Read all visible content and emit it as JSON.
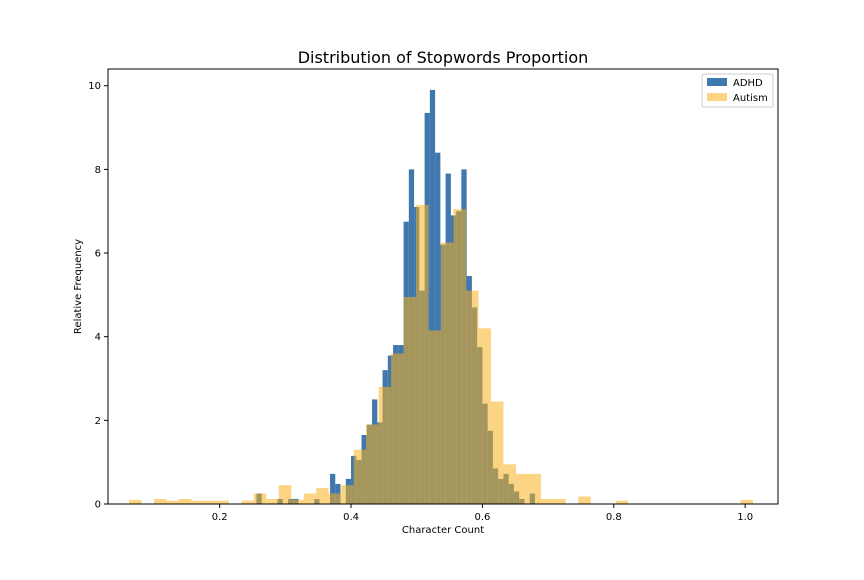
{
  "chart_data": {
    "type": "bar",
    "title": "Distribution of Stopwords Proportion",
    "xlabel": "Character Count",
    "ylabel": "Relative Frequency",
    "xlim": [
      0.03,
      1.05
    ],
    "ylim": [
      0,
      10.4
    ],
    "xticks": [
      0.2,
      0.4,
      0.6,
      0.8,
      1.0
    ],
    "xtick_labels": [
      "0.2",
      "0.4",
      "0.6",
      "0.8",
      "1.0"
    ],
    "yticks": [
      0,
      2,
      4,
      6,
      8,
      10
    ],
    "ytick_labels": [
      "0",
      "2",
      "4",
      "6",
      "8",
      "10"
    ],
    "legend_position": "top-right",
    "grid": false,
    "series": [
      {
        "name": "ADHD",
        "color": "#1f5f9e",
        "opacity": 0.85,
        "bins": [
          [
            0.256,
            0.264,
            0.25
          ],
          [
            0.288,
            0.296,
            0.12
          ],
          [
            0.304,
            0.312,
            0.12
          ],
          [
            0.312,
            0.32,
            0.12
          ],
          [
            0.344,
            0.352,
            0.12
          ],
          [
            0.368,
            0.376,
            0.72
          ],
          [
            0.376,
            0.384,
            0.48
          ],
          [
            0.392,
            0.4,
            0.6
          ],
          [
            0.4,
            0.408,
            1.15
          ],
          [
            0.408,
            0.416,
            1.05
          ],
          [
            0.416,
            0.424,
            1.65
          ],
          [
            0.424,
            0.432,
            1.9
          ],
          [
            0.432,
            0.44,
            2.5
          ],
          [
            0.44,
            0.448,
            1.95
          ],
          [
            0.448,
            0.456,
            3.2
          ],
          [
            0.456,
            0.464,
            3.55
          ],
          [
            0.464,
            0.472,
            3.8
          ],
          [
            0.472,
            0.48,
            3.8
          ],
          [
            0.48,
            0.488,
            6.75
          ],
          [
            0.488,
            0.496,
            8.0
          ],
          [
            0.496,
            0.504,
            7.1
          ],
          [
            0.504,
            0.512,
            5.1
          ],
          [
            0.512,
            0.52,
            9.35
          ],
          [
            0.52,
            0.528,
            9.9
          ],
          [
            0.528,
            0.536,
            8.4
          ],
          [
            0.536,
            0.544,
            6.2
          ],
          [
            0.544,
            0.552,
            7.9
          ],
          [
            0.552,
            0.56,
            6.9
          ],
          [
            0.56,
            0.568,
            7.0
          ],
          [
            0.568,
            0.576,
            8.0
          ],
          [
            0.576,
            0.584,
            5.45
          ],
          [
            0.584,
            0.592,
            4.7
          ],
          [
            0.592,
            0.6,
            3.75
          ],
          [
            0.6,
            0.608,
            2.4
          ],
          [
            0.608,
            0.616,
            1.75
          ],
          [
            0.616,
            0.624,
            0.85
          ],
          [
            0.624,
            0.632,
            0.6
          ],
          [
            0.632,
            0.64,
            0.72
          ],
          [
            0.64,
            0.648,
            0.48
          ],
          [
            0.648,
            0.656,
            0.3
          ],
          [
            0.656,
            0.664,
            0.12
          ],
          [
            0.672,
            0.68,
            0.25
          ]
        ]
      },
      {
        "name": "Autism",
        "color": "#f8b01f",
        "opacity": 0.55,
        "bins": [
          [
            0.062,
            0.081,
            0.1
          ],
          [
            0.1,
            0.119,
            0.12
          ],
          [
            0.119,
            0.138,
            0.08
          ],
          [
            0.138,
            0.157,
            0.12
          ],
          [
            0.157,
            0.176,
            0.08
          ],
          [
            0.176,
            0.195,
            0.08
          ],
          [
            0.195,
            0.214,
            0.08
          ],
          [
            0.233,
            0.252,
            0.08
          ],
          [
            0.252,
            0.271,
            0.25
          ],
          [
            0.271,
            0.29,
            0.12
          ],
          [
            0.29,
            0.309,
            0.45
          ],
          [
            0.309,
            0.328,
            0.1
          ],
          [
            0.328,
            0.347,
            0.25
          ],
          [
            0.347,
            0.366,
            0.38
          ],
          [
            0.366,
            0.385,
            0.25
          ],
          [
            0.385,
            0.404,
            0.45
          ],
          [
            0.404,
            0.423,
            1.3
          ],
          [
            0.423,
            0.442,
            1.9
          ],
          [
            0.442,
            0.461,
            2.8
          ],
          [
            0.461,
            0.48,
            3.6
          ],
          [
            0.48,
            0.499,
            4.95
          ],
          [
            0.499,
            0.518,
            7.15
          ],
          [
            0.518,
            0.537,
            4.15
          ],
          [
            0.537,
            0.556,
            6.25
          ],
          [
            0.556,
            0.575,
            7.05
          ],
          [
            0.575,
            0.594,
            5.1
          ],
          [
            0.594,
            0.613,
            4.2
          ],
          [
            0.613,
            0.632,
            2.45
          ],
          [
            0.632,
            0.651,
            0.95
          ],
          [
            0.651,
            0.67,
            0.72
          ],
          [
            0.67,
            0.689,
            0.72
          ],
          [
            0.689,
            0.708,
            0.12
          ],
          [
            0.708,
            0.727,
            0.12
          ],
          [
            0.746,
            0.765,
            0.18
          ],
          [
            0.803,
            0.822,
            0.08
          ],
          [
            0.993,
            1.012,
            0.1
          ]
        ]
      }
    ]
  }
}
